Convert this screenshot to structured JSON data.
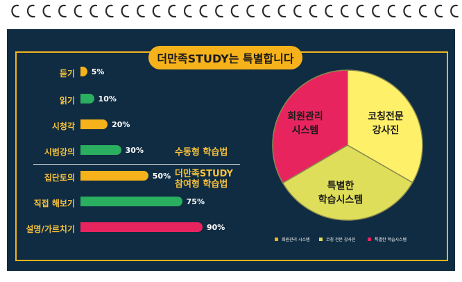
{
  "title": "더만족STUDY는 특별합니다",
  "groups": {
    "passive": "수동형 학습법",
    "active_line1": "더만족STUDY",
    "active_line2": "참여형 학습법"
  },
  "colors": {
    "orange": "#f6b21b",
    "green": "#2aae5f",
    "pink": "#e8245f",
    "yellow": "#fff06a",
    "olive": "#dede5a"
  },
  "chart_data": [
    {
      "type": "bar",
      "orientation": "horizontal",
      "categories": [
        "듣기",
        "읽기",
        "시청각",
        "시범강의",
        "집단토의",
        "직접 해보기",
        "설명/가르치기"
      ],
      "values": [
        5,
        10,
        20,
        30,
        50,
        75,
        90
      ],
      "value_labels": [
        "5%",
        "10%",
        "20%",
        "30%",
        "50%",
        "75%",
        "90%"
      ],
      "bar_colors": [
        "#f6b21b",
        "#2aae5f",
        "#f6b21b",
        "#2aae5f",
        "#f6b21b",
        "#2aae5f",
        "#e8245f"
      ],
      "unit": "%",
      "xlim": [
        0,
        100
      ]
    },
    {
      "type": "pie",
      "slices": [
        {
          "label": "코칭전문 강사진",
          "value": 33.3,
          "color": "#fff06a"
        },
        {
          "label": "특별한 학습시스템",
          "value": 33.3,
          "color": "#dede5a"
        },
        {
          "label": "회원관리 시스템",
          "value": 33.4,
          "color": "#e8245f"
        }
      ],
      "slice_text": [
        "코칭전문",
        "강사진",
        "특별한",
        "학습시스템",
        "회원관리",
        "시스템"
      ],
      "legend": [
        "회원관리 시스템",
        "코칭 전문 강사진",
        "특별한 학습시스템"
      ],
      "legend_placement": "bottom"
    }
  ]
}
